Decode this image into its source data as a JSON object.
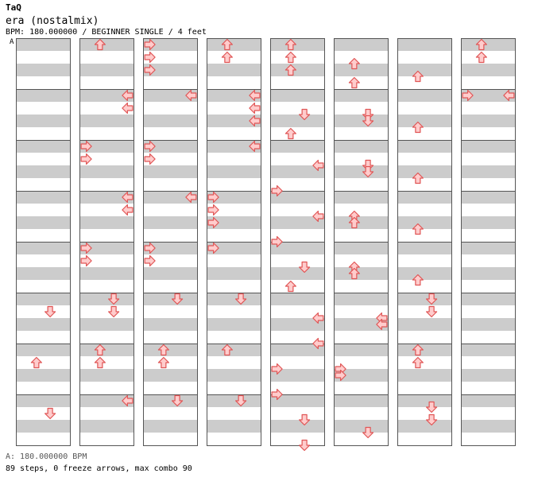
{
  "header": {
    "artist": "TaQ",
    "title": "era (nostalmix)",
    "info": "BPM: 180.000000 / BEGINNER SINGLE / 4 feet"
  },
  "bpm_marker": "A",
  "footer": {
    "bpm_line": "A: 180.000000 BPM",
    "stats": "89 steps, 0 freeze arrows, max combo 90"
  },
  "colors": {
    "band_dark": "#cccccc",
    "band_light": "#ffffff",
    "border": "#555555",
    "arrow_fill": "#ffcccc",
    "arrow_stroke": "#e05555"
  },
  "chart_data": {
    "type": "step-chart",
    "lanes": [
      "left",
      "down",
      "up",
      "right"
    ],
    "beats_per_measure": 4,
    "steps_per_beat": 2,
    "columns": [
      [
        {
          "measure": 0,
          "steps": []
        },
        {
          "measure": 1,
          "steps": []
        },
        {
          "measure": 2,
          "steps": []
        },
        {
          "measure": 3,
          "steps": []
        },
        {
          "measure": 4,
          "steps": []
        },
        {
          "measure": 5,
          "steps": [
            [
              1,
              2
            ]
          ]
        },
        {
          "measure": 6,
          "steps": [
            [
              1,
              1
            ]
          ]
        },
        {
          "measure": 7,
          "steps": [
            [
              1,
              2
            ]
          ]
        }
      ],
      [
        {
          "measure": 8,
          "steps": [
            [
              0,
              1
            ]
          ]
        },
        {
          "measure": 9,
          "steps": [
            [
              0,
              3
            ],
            [
              1,
              3
            ]
          ]
        },
        {
          "measure": 10,
          "steps": [
            [
              0,
              0
            ],
            [
              1,
              0
            ]
          ]
        },
        {
          "measure": 11,
          "steps": [
            [
              0,
              3
            ],
            [
              1,
              3
            ]
          ]
        },
        {
          "measure": 12,
          "steps": [
            [
              0,
              0
            ],
            [
              1,
              0
            ]
          ]
        },
        {
          "measure": 13,
          "steps": [
            [
              0,
              2
            ],
            [
              1,
              2
            ]
          ]
        },
        {
          "measure": 14,
          "steps": [
            [
              0,
              1
            ],
            [
              1,
              1
            ]
          ]
        },
        {
          "measure": 15,
          "steps": [
            [
              0,
              3
            ]
          ]
        }
      ],
      [
        {
          "measure": 16,
          "steps": [
            [
              0,
              0
            ],
            [
              1,
              0
            ],
            [
              2,
              0
            ]
          ]
        },
        {
          "measure": 17,
          "steps": [
            [
              0,
              3
            ]
          ]
        },
        {
          "measure": 18,
          "steps": [
            [
              0,
              0
            ],
            [
              1,
              0
            ]
          ]
        },
        {
          "measure": 19,
          "steps": [
            [
              0,
              3
            ]
          ]
        },
        {
          "measure": 20,
          "steps": [
            [
              0,
              0
            ],
            [
              1,
              0
            ]
          ]
        },
        {
          "measure": 21,
          "steps": [
            [
              0,
              2
            ]
          ]
        },
        {
          "measure": 22,
          "steps": [
            [
              0,
              1
            ],
            [
              1,
              1
            ]
          ]
        },
        {
          "measure": 23,
          "steps": [
            [
              0,
              2
            ]
          ]
        }
      ],
      [
        {
          "measure": 24,
          "steps": [
            [
              0,
              1
            ],
            [
              1,
              1
            ]
          ]
        },
        {
          "measure": 25,
          "steps": [
            [
              0,
              3
            ],
            [
              1,
              3
            ],
            [
              2,
              3
            ]
          ]
        },
        {
          "measure": 26,
          "steps": [
            [
              0,
              3
            ]
          ]
        },
        {
          "measure": 27,
          "steps": [
            [
              0,
              0
            ],
            [
              1,
              0
            ],
            [
              2,
              0
            ]
          ]
        },
        {
          "measure": 28,
          "steps": [
            [
              0,
              0
            ]
          ]
        },
        {
          "measure": 29,
          "steps": [
            [
              0,
              2
            ]
          ]
        },
        {
          "measure": 30,
          "steps": [
            [
              0,
              1
            ]
          ]
        },
        {
          "measure": 31,
          "steps": [
            [
              0,
              2
            ]
          ]
        }
      ],
      [
        {
          "measure": 32,
          "steps": [
            [
              0,
              1
            ],
            [
              1,
              1
            ],
            [
              2,
              1
            ]
          ]
        },
        {
          "measure": 33,
          "steps": [
            [
              1.5,
              2
            ],
            [
              3,
              1
            ]
          ]
        },
        {
          "measure": 34,
          "steps": [
            [
              1.5,
              3
            ],
            [
              3.5,
              0
            ]
          ]
        },
        {
          "measure": 35,
          "steps": [
            [
              1.5,
              3
            ],
            [
              3.5,
              0
            ]
          ]
        },
        {
          "measure": 36,
          "steps": [
            [
              1.5,
              2
            ],
            [
              3,
              1
            ]
          ]
        },
        {
          "measure": 37,
          "steps": [
            [
              1.5,
              3
            ],
            [
              3.5,
              3
            ]
          ]
        },
        {
          "measure": 38,
          "steps": [
            [
              1.5,
              0
            ],
            [
              3.5,
              0
            ]
          ]
        },
        {
          "measure": 39,
          "steps": [
            [
              1.5,
              2
            ],
            [
              3.5,
              2
            ]
          ]
        }
      ],
      [
        {
          "measure": 40,
          "steps": [
            [
              1.5,
              1
            ],
            [
              3,
              1
            ]
          ]
        },
        {
          "measure": 41,
          "steps": [
            [
              1.5,
              2
            ],
            [
              2,
              2
            ]
          ]
        },
        {
          "measure": 42,
          "steps": [
            [
              1.5,
              2
            ],
            [
              2,
              2
            ]
          ]
        },
        {
          "measure": 43,
          "steps": [
            [
              1.5,
              1
            ],
            [
              2,
              1
            ]
          ]
        },
        {
          "measure": 44,
          "steps": [
            [
              1.5,
              1
            ],
            [
              2,
              1
            ]
          ]
        },
        {
          "measure": 45,
          "steps": [
            [
              1.5,
              3
            ],
            [
              2,
              3
            ]
          ]
        },
        {
          "measure": 46,
          "steps": [
            [
              1.5,
              0
            ],
            [
              2,
              0
            ]
          ]
        },
        {
          "measure": 47,
          "steps": [
            [
              2.5,
              2
            ]
          ]
        }
      ],
      [
        {
          "measure": 48,
          "steps": [
            [
              2.5,
              1
            ]
          ]
        },
        {
          "measure": 49,
          "steps": [
            [
              2.5,
              1
            ]
          ]
        },
        {
          "measure": 50,
          "steps": [
            [
              2.5,
              1
            ]
          ]
        },
        {
          "measure": 51,
          "steps": [
            [
              2.5,
              1
            ]
          ]
        },
        {
          "measure": 52,
          "steps": [
            [
              2.5,
              1
            ]
          ]
        },
        {
          "measure": 53,
          "steps": [
            [
              0,
              2
            ],
            [
              1,
              2
            ]
          ]
        },
        {
          "measure": 54,
          "steps": [
            [
              0,
              1
            ],
            [
              1,
              1
            ]
          ]
        },
        {
          "measure": 55,
          "steps": [
            [
              0.5,
              2
            ],
            [
              1.5,
              2
            ]
          ]
        }
      ],
      [
        {
          "measure": 56,
          "steps": [
            [
              0,
              1
            ],
            [
              1,
              1
            ]
          ]
        },
        {
          "measure": 57,
          "steps": [
            [
              0,
              0
            ],
            [
              0,
              3
            ]
          ]
        },
        {
          "measure": 58,
          "steps": []
        },
        {
          "measure": 59,
          "steps": []
        },
        {
          "measure": 60,
          "steps": []
        },
        {
          "measure": 61,
          "steps": []
        },
        {
          "measure": 62,
          "steps": []
        },
        {
          "measure": 63,
          "steps": []
        }
      ]
    ]
  }
}
